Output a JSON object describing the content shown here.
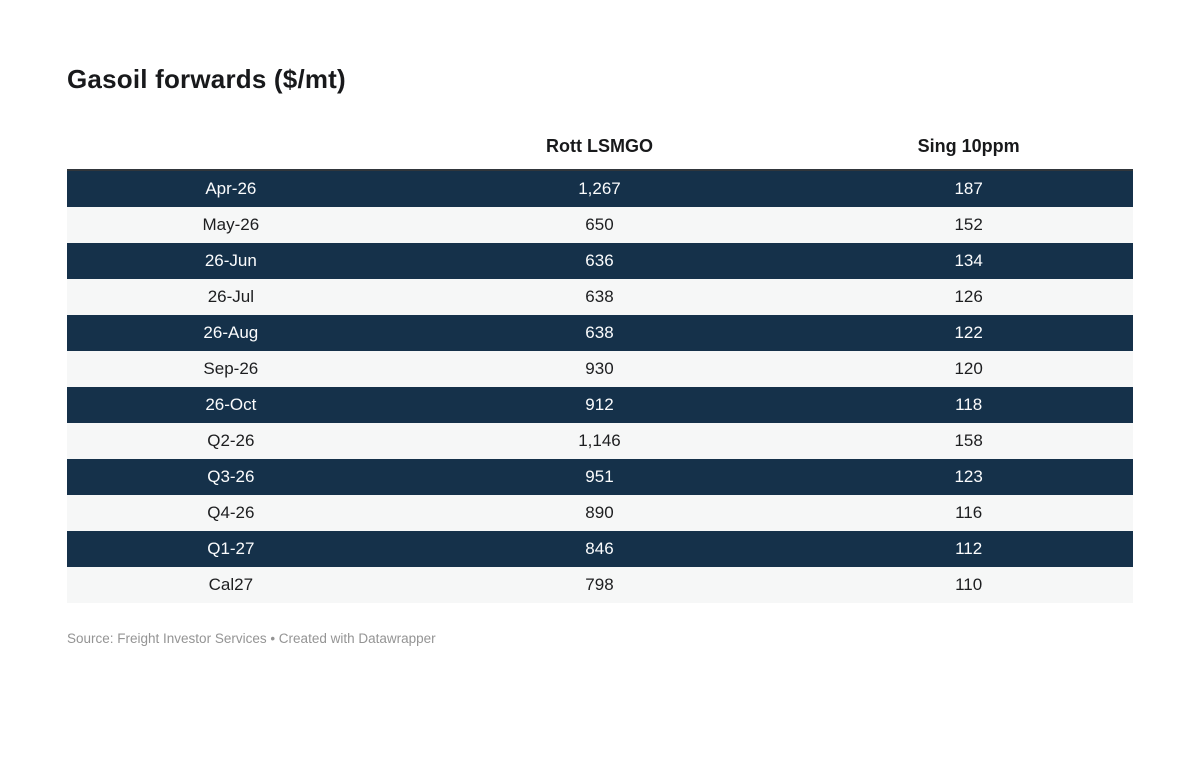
{
  "title": "Gasoil forwards ($/mt)",
  "table": {
    "col_period_header": "",
    "col_rott_header": "Rott LSMGO",
    "col_sing_header": "Sing 10ppm",
    "rows": [
      {
        "period": "Apr-26",
        "rott": "1,267",
        "sing": "187"
      },
      {
        "period": "May-26",
        "rott": "650",
        "sing": "152"
      },
      {
        "period": "26-Jun",
        "rott": "636",
        "sing": "134"
      },
      {
        "period": "26-Jul",
        "rott": "638",
        "sing": "126"
      },
      {
        "period": "26-Aug",
        "rott": "638",
        "sing": "122"
      },
      {
        "period": "Sep-26",
        "rott": "930",
        "sing": "120"
      },
      {
        "period": "26-Oct",
        "rott": "912",
        "sing": "118"
      },
      {
        "period": "Q2-26",
        "rott": "1,146",
        "sing": "158"
      },
      {
        "period": "Q3-26",
        "rott": "951",
        "sing": "123"
      },
      {
        "period": "Q4-26",
        "rott": "890",
        "sing": "116"
      },
      {
        "period": "Q1-27",
        "rott": "846",
        "sing": "112"
      },
      {
        "period": "Cal27",
        "rott": "798",
        "sing": "110"
      }
    ]
  },
  "footer": "Source: Freight Investor Services • Created with Datawrapper",
  "colors": {
    "dark_row_bg": "#15314a",
    "dark_row_text": "#fbfcfd",
    "light_row_bg": "#f6f7f7",
    "light_row_text": "#1d1e20",
    "table_top_border": "#31363b",
    "title_text": "#18191b",
    "footer_text": "#949494",
    "page_bg": "#ffffff"
  },
  "chart_data": {
    "type": "table",
    "title": "Gasoil forwards ($/mt)",
    "columns": [
      "",
      "Rott LSMGO",
      "Sing 10ppm"
    ],
    "rows": [
      [
        "Apr-26",
        1267,
        187
      ],
      [
        "May-26",
        650,
        152
      ],
      [
        "26-Jun",
        636,
        134
      ],
      [
        "26-Jul",
        638,
        126
      ],
      [
        "26-Aug",
        638,
        122
      ],
      [
        "Sep-26",
        930,
        120
      ],
      [
        "26-Oct",
        912,
        118
      ],
      [
        "Q2-26",
        1146,
        158
      ],
      [
        "Q3-26",
        951,
        123
      ],
      [
        "Q4-26",
        890,
        116
      ],
      [
        "Q1-27",
        846,
        112
      ],
      [
        "Cal27",
        798,
        110
      ]
    ],
    "source": "Freight Investor Services",
    "layout_hints": {
      "row_striping": "alternating dark-navy / light-gray starting dark",
      "alignment": "all columns centered",
      "grid": false
    }
  }
}
